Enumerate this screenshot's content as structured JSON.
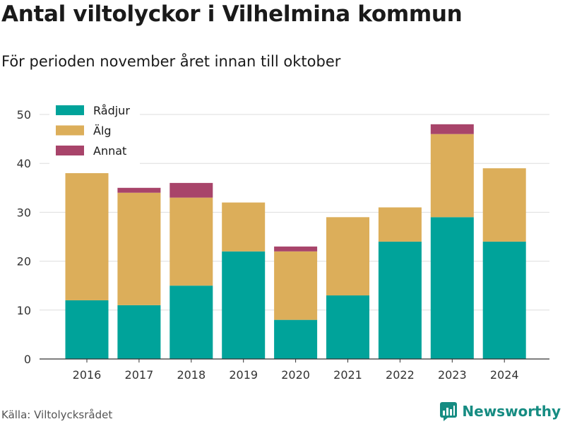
{
  "header": {
    "title": "Antal viltolyckor i Vilhelmina kommun",
    "subtitle": "För perioden november året innan till oktober"
  },
  "footer": {
    "source": "Källa: Viltolycksrådet",
    "brand": "Newsworthy"
  },
  "chart_data": {
    "type": "bar",
    "stacked": true,
    "categories": [
      "2016",
      "2017",
      "2018",
      "2019",
      "2020",
      "2021",
      "2022",
      "2023",
      "2024"
    ],
    "series": [
      {
        "name": "Rådjur",
        "color": "#00a39a",
        "values": [
          12,
          11,
          15,
          22,
          8,
          13,
          24,
          29,
          24
        ]
      },
      {
        "name": "Älg",
        "color": "#dcae5a",
        "values": [
          26,
          23,
          18,
          10,
          14,
          16,
          7,
          17,
          15
        ]
      },
      {
        "name": "Annat",
        "color": "#a8446a",
        "values": [
          0,
          1,
          3,
          0,
          1,
          0,
          0,
          2,
          0
        ]
      }
    ],
    "ylim": [
      0,
      50
    ],
    "yticks": [
      0,
      10,
      20,
      30,
      40,
      50
    ],
    "grid": true,
    "legend_position": "top-left"
  }
}
